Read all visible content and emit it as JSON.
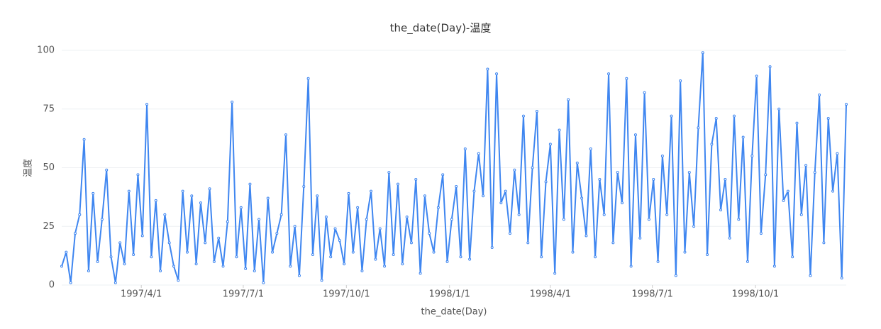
{
  "chart_data": {
    "type": "line",
    "title": "the_date(Day)-温度",
    "x_label": "the_date(Day)",
    "y_label": "温度",
    "x": [
      "1997/1/20",
      "1997/1/24",
      "1997/1/28",
      "1997/2/1",
      "1997/2/5",
      "1997/2/9",
      "1997/2/13",
      "1997/2/17",
      "1997/2/21",
      "1997/2/25",
      "1997/3/1",
      "1997/3/5",
      "1997/3/9",
      "1997/3/13",
      "1997/3/17",
      "1997/3/21",
      "1997/3/25",
      "1997/3/29",
      "1997/4/2",
      "1997/4/6",
      "1997/4/10",
      "1997/4/14",
      "1997/4/18",
      "1997/4/22",
      "1997/4/26",
      "1997/4/30",
      "1997/5/4",
      "1997/5/8",
      "1997/5/12",
      "1997/5/16",
      "1997/5/20",
      "1997/5/24",
      "1997/5/28",
      "1997/6/1",
      "1997/6/5",
      "1997/6/9",
      "1997/6/13",
      "1997/6/17",
      "1997/6/21",
      "1997/6/25",
      "1997/6/29",
      "1997/7/3",
      "1997/7/7",
      "1997/7/11",
      "1997/7/15",
      "1997/7/19",
      "1997/7/23",
      "1997/7/27",
      "1997/7/31",
      "1997/8/4",
      "1997/8/8",
      "1997/8/12",
      "1997/8/16",
      "1997/8/20",
      "1997/8/24",
      "1997/8/28",
      "1997/9/1",
      "1997/9/5",
      "1997/9/9",
      "1997/9/13",
      "1997/9/17",
      "1997/9/21",
      "1997/9/25",
      "1997/9/29",
      "1997/10/3",
      "1997/10/7",
      "1997/10/11",
      "1997/10/15",
      "1997/10/19",
      "1997/10/23",
      "1997/10/27",
      "1997/10/31",
      "1997/11/4",
      "1997/11/8",
      "1997/11/12",
      "1997/11/16",
      "1997/11/20",
      "1997/11/24",
      "1997/11/28",
      "1997/12/2",
      "1997/12/6",
      "1997/12/10",
      "1997/12/14",
      "1997/12/18",
      "1997/12/22",
      "1997/12/26",
      "1997/12/30",
      "1998/1/3",
      "1998/1/7",
      "1998/1/11",
      "1998/1/15",
      "1998/1/19",
      "1998/1/23",
      "1998/1/27",
      "1998/1/31",
      "1998/2/4",
      "1998/2/8",
      "1998/2/12",
      "1998/2/16",
      "1998/2/20",
      "1998/2/24",
      "1998/2/28",
      "1998/3/4",
      "1998/3/8",
      "1998/3/12",
      "1998/3/16",
      "1998/3/20",
      "1998/3/24",
      "1998/3/28",
      "1998/4/1",
      "1998/4/5",
      "1998/4/9",
      "1998/4/13",
      "1998/4/17",
      "1998/4/21",
      "1998/4/25",
      "1998/4/29",
      "1998/5/3",
      "1998/5/7",
      "1998/5/11",
      "1998/5/15",
      "1998/5/19",
      "1998/5/23",
      "1998/5/27",
      "1998/5/31",
      "1998/6/4",
      "1998/6/8",
      "1998/6/12",
      "1998/6/16",
      "1998/6/20",
      "1998/6/24",
      "1998/6/28",
      "1998/7/2",
      "1998/7/6",
      "1998/7/10",
      "1998/7/14",
      "1998/7/18",
      "1998/7/22",
      "1998/7/26",
      "1998/7/30",
      "1998/8/3",
      "1998/8/7",
      "1998/8/11",
      "1998/8/15",
      "1998/8/19",
      "1998/8/23",
      "1998/8/27",
      "1998/8/31",
      "1998/9/4",
      "1998/9/8",
      "1998/9/12",
      "1998/9/16",
      "1998/9/20",
      "1998/9/24",
      "1998/9/28",
      "1998/10/2",
      "1998/10/6",
      "1998/10/10",
      "1998/10/14",
      "1998/10/18",
      "1998/10/22",
      "1998/10/26",
      "1998/10/30",
      "1998/11/3",
      "1998/11/7",
      "1998/11/11",
      "1998/11/15",
      "1998/11/19",
      "1998/11/23",
      "1998/11/27",
      "1998/12/1",
      "1998/12/5",
      "1998/12/9",
      "1998/12/13",
      "1998/12/17",
      "1998/12/21"
    ],
    "values": [
      8,
      14,
      1,
      22,
      30,
      62,
      6,
      39,
      10,
      28,
      49,
      12,
      1,
      18,
      9,
      40,
      13,
      47,
      21,
      77,
      12,
      36,
      6,
      30,
      18,
      8,
      2,
      40,
      14,
      38,
      9,
      35,
      18,
      41,
      10,
      20,
      8,
      27,
      78,
      12,
      33,
      7,
      43,
      6,
      28,
      1,
      37,
      14,
      22,
      30,
      64,
      8,
      25,
      4,
      42,
      88,
      13,
      38,
      2,
      29,
      12,
      24,
      19,
      9,
      39,
      14,
      33,
      6,
      28,
      40,
      11,
      24,
      8,
      48,
      13,
      43,
      9,
      29,
      18,
      45,
      5,
      38,
      22,
      14,
      33,
      47,
      10,
      28,
      42,
      12,
      58,
      11,
      40,
      56,
      38,
      92,
      16,
      90,
      35,
      40,
      22,
      49,
      30,
      72,
      18,
      50,
      74,
      12,
      44,
      60,
      5,
      66,
      28,
      79,
      14,
      52,
      37,
      21,
      58,
      12,
      45,
      30,
      90,
      18,
      48,
      35,
      88,
      8,
      64,
      20,
      82,
      28,
      45,
      10,
      55,
      30,
      72,
      4,
      87,
      14,
      48,
      25,
      67,
      99,
      13,
      60,
      71,
      32,
      45,
      20,
      72,
      28,
      63,
      10,
      55,
      89,
      22,
      47,
      93,
      8,
      75,
      36,
      40,
      12,
      69,
      30,
      51,
      4,
      48,
      81,
      18,
      71,
      40,
      56,
      3,
      77
    ],
    "color": "#3f86f0",
    "xlim": [
      "1997/1/20",
      "1998/12/21"
    ],
    "xticks": [
      "1997/4/1",
      "1997/7/1",
      "1997/10/1",
      "1998/1/1",
      "1998/4/1",
      "1998/7/1",
      "1998/10/1"
    ],
    "ylim": [
      0,
      100
    ],
    "yticks": [
      0,
      25,
      50,
      75,
      100
    ],
    "grid": true
  }
}
